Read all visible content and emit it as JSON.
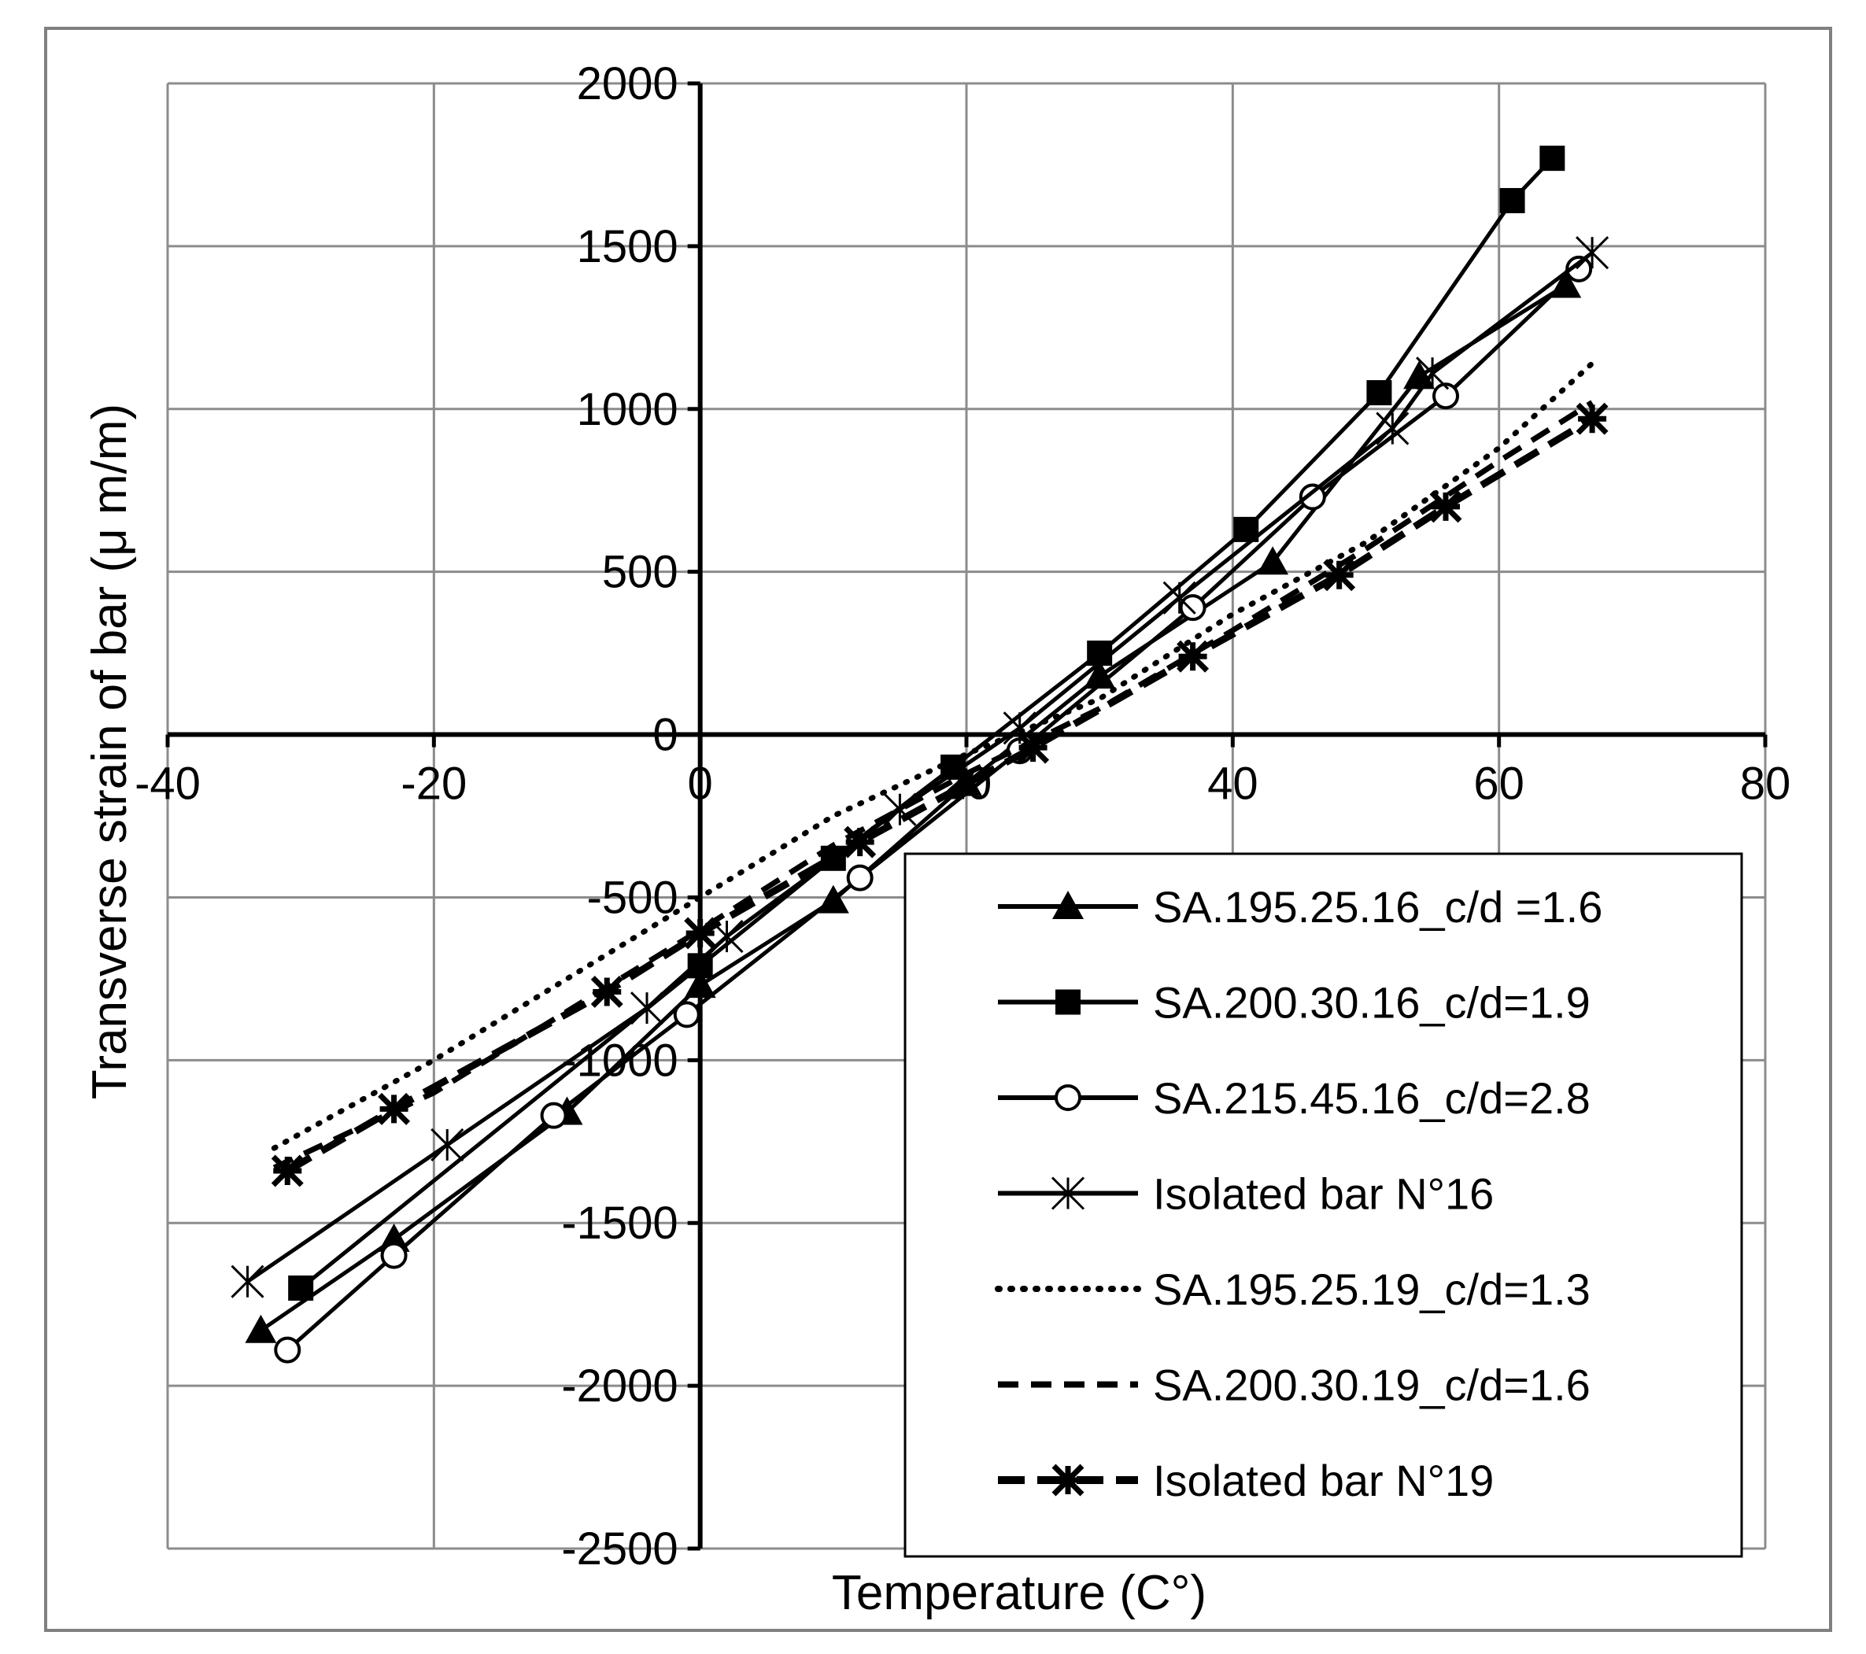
{
  "chart_data": {
    "type": "line",
    "xlabel": "Temperature    (C°)",
    "ylabel": "Transverse strain of bar  (μ m/m)",
    "xlim": [
      -40,
      80
    ],
    "ylim": [
      -2500,
      2000
    ],
    "x_ticks": [
      -40,
      -20,
      0,
      20,
      40,
      60,
      80
    ],
    "y_ticks": [
      2000,
      1500,
      1000,
      500,
      0,
      -500,
      -1000,
      -1500,
      -2000,
      -2500
    ],
    "grid": true,
    "legend_position": "bottom-right",
    "series": [
      {
        "name": "SA.195.25.16_c/d =1.6",
        "marker": "triangle",
        "line": "solid",
        "color": "#000000",
        "points": [
          [
            -33,
            -1830
          ],
          [
            -23,
            -1550
          ],
          [
            -10,
            -1160
          ],
          [
            0,
            -770
          ],
          [
            10,
            -510
          ],
          [
            20,
            -150
          ],
          [
            30,
            180
          ],
          [
            43,
            530
          ],
          [
            54,
            1100
          ],
          [
            65,
            1380
          ]
        ]
      },
      {
        "name": "SA.200.30.16_c/d=1.9",
        "marker": "square",
        "line": "solid",
        "color": "#000000",
        "points": [
          [
            -30,
            -1700
          ],
          [
            0,
            -710
          ],
          [
            10,
            -380
          ],
          [
            19,
            -100
          ],
          [
            30,
            250
          ],
          [
            41,
            630
          ],
          [
            51,
            1050
          ],
          [
            61,
            1640
          ],
          [
            64,
            1770
          ]
        ]
      },
      {
        "name": "SA.215.45.16_c/d=2.8",
        "marker": "circle",
        "line": "solid",
        "color": "#000000",
        "points": [
          [
            -31,
            -1890
          ],
          [
            -23,
            -1600
          ],
          [
            -11,
            -1170
          ],
          [
            -1,
            -860
          ],
          [
            12,
            -440
          ],
          [
            24,
            -50
          ],
          [
            37,
            390
          ],
          [
            46,
            730
          ],
          [
            56,
            1040
          ],
          [
            66,
            1430
          ]
        ]
      },
      {
        "name": "Isolated bar N°16",
        "marker": "asterisk",
        "line": "solid",
        "color": "#000000",
        "points": [
          [
            -34,
            -1680
          ],
          [
            -19,
            -1260
          ],
          [
            -4,
            -840
          ],
          [
            2,
            -620
          ],
          [
            15,
            -230
          ],
          [
            24,
            20
          ],
          [
            36,
            420
          ],
          [
            52,
            940
          ],
          [
            55,
            1110
          ],
          [
            67,
            1480
          ]
        ]
      },
      {
        "name": "SA.195.25.19_c/d=1.3",
        "marker": "none",
        "line": "dotted",
        "color": "#000000",
        "points": [
          [
            -32,
            -1270
          ],
          [
            -20,
            -1000
          ],
          [
            0,
            -500
          ],
          [
            10,
            -250
          ],
          [
            20,
            -60
          ],
          [
            30,
            110
          ],
          [
            40,
            370
          ],
          [
            50,
            590
          ],
          [
            60,
            880
          ],
          [
            67,
            1140
          ]
        ]
      },
      {
        "name": "SA.200.30.19_c/d=1.6",
        "marker": "none",
        "line": "dashed",
        "color": "#000000",
        "points": [
          [
            -32,
            -1330
          ],
          [
            -20,
            -1100
          ],
          [
            0,
            -600
          ],
          [
            10,
            -340
          ],
          [
            20,
            -120
          ],
          [
            30,
            80
          ],
          [
            40,
            320
          ],
          [
            50,
            570
          ],
          [
            60,
            840
          ],
          [
            67,
            1020
          ]
        ]
      },
      {
        "name": "Isolated bar N°19",
        "marker": "x-bold",
        "line": "dashed-bold",
        "color": "#000000",
        "points": [
          [
            -31,
            -1340
          ],
          [
            -23,
            -1150
          ],
          [
            -7,
            -790
          ],
          [
            0,
            -610
          ],
          [
            12,
            -330
          ],
          [
            25,
            -40
          ],
          [
            37,
            240
          ],
          [
            48,
            490
          ],
          [
            56,
            700
          ],
          [
            67,
            970
          ]
        ]
      }
    ]
  }
}
